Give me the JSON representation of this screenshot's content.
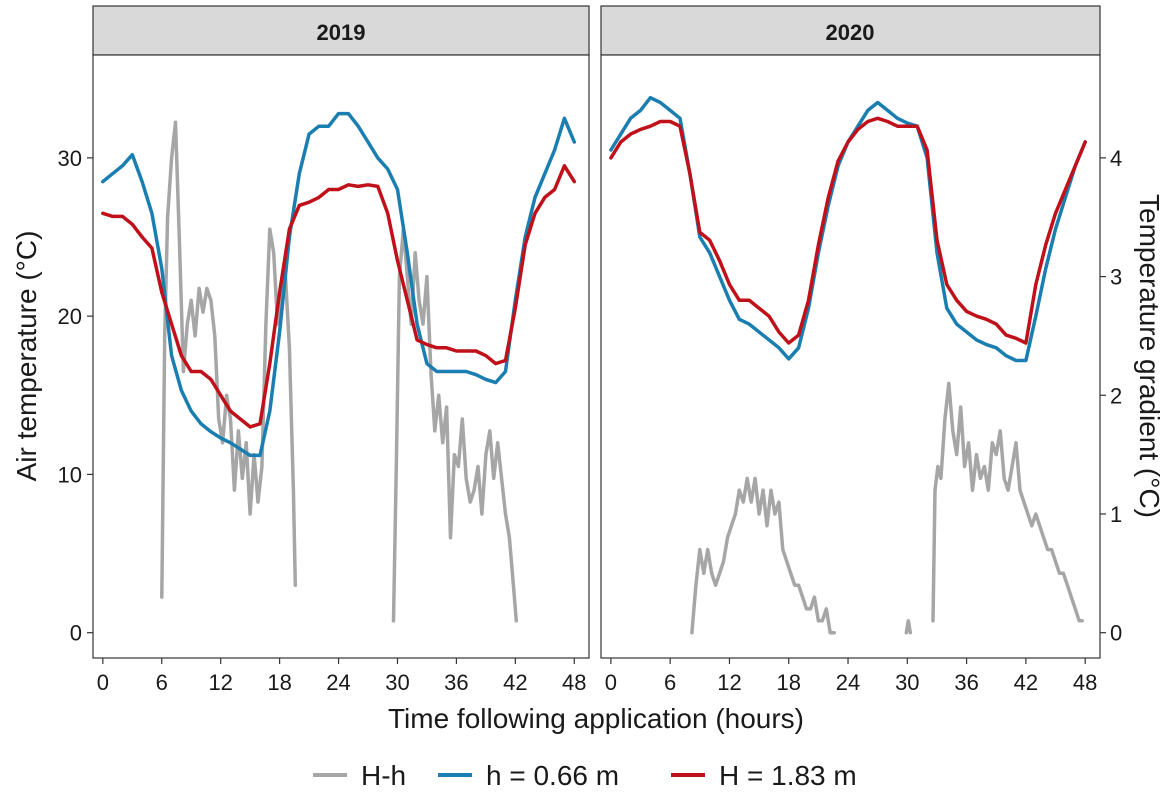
{
  "colors": {
    "hh": "#a6a6a6",
    "h_low": "#1a7eb0",
    "h_high": "#c0111a",
    "strip_bg": "#d9d9d9",
    "frame": "#333333"
  },
  "chart_data": {
    "type": "line",
    "xlabel": "Time following application (hours)",
    "ylabel_left": "Air temperature (°C)",
    "ylabel_right": "Temperature gradient (°C)",
    "x_ticks": [
      0,
      6,
      12,
      18,
      24,
      30,
      36,
      42,
      48
    ],
    "xlim": [
      -1.0,
      49.5
    ],
    "y_left_ticks": [
      0,
      10,
      20,
      30
    ],
    "y_left_lim": [
      -1.6,
      36.5
    ],
    "y_right_ticks": [
      0,
      1,
      2,
      3,
      4
    ],
    "y_right_scale": 7.5,
    "legend": {
      "position": "bottom",
      "entries": [
        {
          "key": "hh",
          "label": "H-h"
        },
        {
          "key": "h_low",
          "label": "h = 0.66 m"
        },
        {
          "key": "h_high",
          "label": "H = 1.83 m"
        }
      ]
    },
    "panels": [
      {
        "strip": "2019",
        "series": [
          {
            "key": "h_low",
            "x": [
              0,
              1,
              2,
              3,
              4,
              5,
              6,
              7,
              8,
              9,
              10,
              11,
              12,
              13,
              14,
              15,
              16,
              17,
              18,
              19,
              20,
              21,
              22,
              23,
              24,
              25,
              26,
              27,
              28,
              29,
              30,
              31,
              32,
              33,
              34,
              35,
              36,
              37,
              38,
              39,
              40,
              41,
              42,
              43,
              44,
              45,
              46,
              47,
              48
            ],
            "y": [
              28.5,
              29,
              29.5,
              30.2,
              28.5,
              26.5,
              23,
              17.5,
              15.3,
              14,
              13.2,
              12.7,
              12.3,
              12,
              11.6,
              11.2,
              11.2,
              14,
              19,
              25,
              29,
              31.5,
              32,
              32,
              32.8,
              32.8,
              32,
              31,
              30,
              29.3,
              28,
              24,
              19.5,
              17,
              16.5,
              16.5,
              16.5,
              16.5,
              16.3,
              16,
              15.8,
              16.5,
              21,
              25,
              27.5,
              29,
              30.5,
              32.5,
              31
            ]
          },
          {
            "key": "h_high",
            "x": [
              0,
              1,
              2,
              3,
              4,
              5,
              6,
              7,
              8,
              9,
              10,
              11,
              12,
              13,
              14,
              15,
              16,
              17,
              18,
              19,
              20,
              21,
              22,
              23,
              24,
              25,
              26,
              27,
              28,
              29,
              30,
              31,
              32,
              33,
              34,
              35,
              36,
              37,
              38,
              39,
              40,
              41,
              42,
              43,
              44,
              45,
              46,
              47,
              48
            ],
            "y": [
              26.5,
              26.3,
              26.3,
              25.8,
              25,
              24.3,
              21.5,
              19.5,
              17.5,
              16.5,
              16.5,
              16,
              15,
              14,
              13.5,
              13,
              13.2,
              17,
              21.5,
              25.5,
              27,
              27.2,
              27.5,
              28,
              28,
              28.3,
              28.2,
              28.3,
              28.2,
              26.5,
              23.5,
              21,
              18.5,
              18.2,
              18,
              18,
              17.8,
              17.8,
              17.8,
              17.5,
              17,
              17.2,
              20.5,
              24.5,
              26.5,
              27.5,
              28,
              29.5,
              28.5
            ]
          },
          {
            "key": "hh",
            "x": [
              6,
              6.3,
              6.6,
              7,
              7.4,
              7.8,
              8.2,
              8.6,
              9,
              9.4,
              9.8,
              10.2,
              10.6,
              11,
              11.4,
              11.8,
              12.2,
              12.6,
              13,
              13.4,
              13.8,
              14.2,
              14.6,
              15,
              15.4,
              15.8,
              16.2,
              16.6,
              17,
              17.4,
              17.8,
              18.2,
              18.6,
              19,
              19.4,
              19.6
            ],
            "y": [
              0.3,
              2.5,
              3.5,
              4.0,
              4.3,
              3.3,
              2.2,
              2.6,
              2.8,
              2.5,
              2.9,
              2.7,
              2.9,
              2.8,
              2.5,
              1.8,
              1.6,
              2.0,
              1.8,
              1.2,
              1.7,
              1.3,
              1.6,
              1.0,
              1.5,
              1.1,
              1.4,
              2.6,
              3.4,
              3.2,
              2.6,
              2.8,
              3.0,
              2.4,
              1.2,
              0.4
            ]
          },
          {
            "key": "hh",
            "x": [
              29.6,
              29.9,
              30.2,
              30.6,
              31,
              31.4,
              31.8,
              32.2,
              32.6,
              33,
              33.4,
              33.8,
              34.2,
              34.6,
              35,
              35.4,
              35.8,
              36.2,
              36.6,
              37,
              37.4,
              37.8,
              38.2,
              38.6,
              39,
              39.4,
              39.8,
              40.2,
              40.6,
              41,
              41.4,
              41.8,
              42.1
            ],
            "y": [
              0.1,
              1.5,
              3.0,
              3.4,
              3.0,
              2.6,
              3.2,
              2.8,
              2.6,
              3.0,
              2.2,
              1.7,
              2.0,
              1.6,
              1.9,
              0.8,
              1.5,
              1.4,
              1.8,
              1.3,
              1.1,
              1.2,
              1.4,
              1.0,
              1.5,
              1.7,
              1.3,
              1.6,
              1.3,
              1.0,
              0.8,
              0.4,
              0.1
            ]
          }
        ]
      },
      {
        "strip": "2020",
        "series": [
          {
            "key": "h_low",
            "x": [
              0,
              1,
              2,
              3,
              4,
              5,
              6,
              7,
              8,
              9,
              10,
              11,
              12,
              13,
              14,
              15,
              16,
              17,
              18,
              19,
              20,
              21,
              22,
              23,
              24,
              25,
              26,
              27,
              28,
              29,
              30,
              31,
              32,
              33,
              34,
              35,
              36,
              37,
              38,
              39,
              40,
              41,
              42,
              43,
              44,
              45,
              46,
              47,
              48
            ],
            "y": [
              30.5,
              31.5,
              32.5,
              33,
              33.8,
              33.5,
              33,
              32.5,
              29,
              25,
              24,
              22.5,
              21,
              19.8,
              19.5,
              19,
              18.5,
              18,
              17.3,
              18,
              20.5,
              24,
              27,
              29.5,
              31,
              32,
              33,
              33.5,
              33,
              32.5,
              32.2,
              32,
              30,
              24,
              20.5,
              19.5,
              19,
              18.5,
              18.2,
              18,
              17.5,
              17.2,
              17.2,
              20,
              23,
              25.5,
              27.5,
              29.5,
              31
            ]
          },
          {
            "key": "h_high",
            "x": [
              0,
              1,
              2,
              3,
              4,
              5,
              6,
              7,
              8,
              9,
              10,
              11,
              12,
              13,
              14,
              15,
              16,
              17,
              18,
              19,
              20,
              21,
              22,
              23,
              24,
              25,
              26,
              27,
              28,
              29,
              30,
              31,
              32,
              33,
              34,
              35,
              36,
              37,
              38,
              39,
              40,
              41,
              42,
              43,
              44,
              45,
              46,
              47,
              48
            ],
            "y": [
              30,
              31,
              31.5,
              31.8,
              32,
              32.3,
              32.3,
              32,
              29,
              25.3,
              24.8,
              23.5,
              22,
              21,
              21,
              20.5,
              20,
              19,
              18.3,
              18.8,
              21,
              24.5,
              27.5,
              29.8,
              31,
              31.8,
              32.3,
              32.5,
              32.3,
              32,
              32,
              32,
              30.5,
              24.8,
              22,
              21,
              20.3,
              20,
              19.8,
              19.5,
              18.8,
              18.6,
              18.3,
              22,
              24.5,
              26.5,
              28,
              29.5,
              31
            ]
          },
          {
            "key": "hh",
            "x": [
              8.2,
              8.6,
              9,
              9.4,
              9.8,
              10.2,
              10.6,
              11,
              11.4,
              11.8,
              12.2,
              12.6,
              13,
              13.4,
              13.8,
              14.2,
              14.6,
              15,
              15.4,
              15.8,
              16.2,
              16.6,
              17,
              17.4,
              17.8,
              18.2,
              18.6,
              19,
              19.4,
              19.8,
              20.2,
              20.6,
              21,
              21.4,
              21.8,
              22.2,
              22.6
            ],
            "y": [
              0.0,
              0.4,
              0.7,
              0.5,
              0.7,
              0.5,
              0.4,
              0.5,
              0.6,
              0.8,
              0.9,
              1.0,
              1.2,
              1.1,
              1.3,
              1.1,
              1.3,
              1.0,
              1.2,
              0.9,
              1.2,
              1.0,
              1.1,
              0.7,
              0.6,
              0.5,
              0.4,
              0.4,
              0.3,
              0.2,
              0.2,
              0.3,
              0.1,
              0.1,
              0.2,
              0.0,
              0.0
            ]
          },
          {
            "key": "hh",
            "x": [
              29.9,
              30.1,
              30.3
            ],
            "y": [
              0.0,
              0.1,
              0.0
            ]
          },
          {
            "key": "hh",
            "x": [
              32.6,
              32.8,
              33.1,
              33.4,
              33.8,
              34.2,
              34.6,
              35,
              35.4,
              35.8,
              36.2,
              36.6,
              37,
              37.4,
              37.8,
              38.2,
              38.6,
              39,
              39.4,
              39.8,
              40.2,
              40.6,
              41,
              41.4,
              41.8,
              42.2,
              42.6,
              43,
              43.4,
              43.8,
              44.2,
              44.6,
              45,
              45.4,
              45.8,
              46.2,
              46.6,
              47,
              47.4,
              47.7
            ],
            "y": [
              0.1,
              1.2,
              1.4,
              1.3,
              1.8,
              2.1,
              1.7,
              1.5,
              1.9,
              1.4,
              1.6,
              1.2,
              1.5,
              1.3,
              1.4,
              1.2,
              1.6,
              1.5,
              1.7,
              1.3,
              1.2,
              1.4,
              1.6,
              1.2,
              1.1,
              1.0,
              0.9,
              1.0,
              0.9,
              0.8,
              0.7,
              0.7,
              0.6,
              0.5,
              0.5,
              0.4,
              0.3,
              0.2,
              0.1,
              0.1
            ]
          }
        ]
      }
    ]
  }
}
